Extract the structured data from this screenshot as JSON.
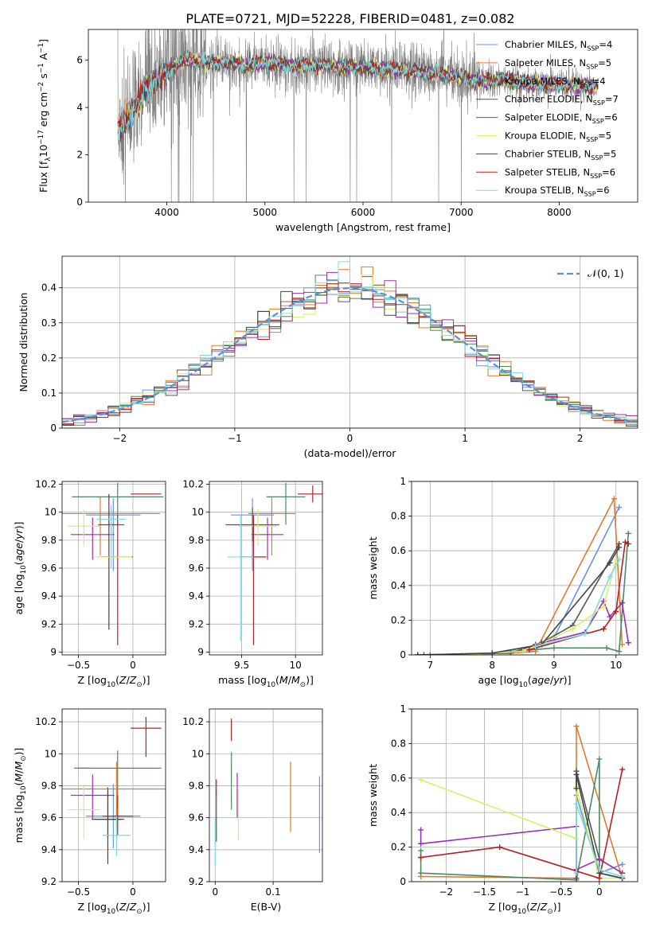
{
  "figure_title": "PLATE=0721, MJD=52228, FIBERID=0481, z=0.082",
  "colors": {
    "chabrier_miles": "#6495ed",
    "salpeter_miles": "#e07a2e",
    "kroupa_miles": "#4d8a63",
    "chabrier_elodie": "#555555",
    "salpeter_elodie": "#9b30b0",
    "kroupa_elodie": "#d8ef6a",
    "chabrier_stelib": "#444444",
    "salpeter_stelib": "#b22222",
    "kroupa_stelib": "#7fdbe0",
    "data": "#808080",
    "gaussian": "#5b8fd6"
  },
  "chart_data": [
    {
      "id": "spectrum",
      "type": "line",
      "xlabel": "wavelength [Angstrom, rest frame]",
      "ylabel": "Flux [f<sub>λ</sub>10<sup>−17</sup> erg cm<sup>−2</sup> s<sup>−1</sup> A<sup>−1</sup>]",
      "xlim": [
        3200,
        8800
      ],
      "ylim": [
        0,
        7.3
      ],
      "xticks": [
        4000,
        5000,
        6000,
        7000,
        8000
      ],
      "yticks": [
        0,
        2,
        4,
        6
      ],
      "legend": "top-right",
      "continuum": {
        "wavelength": [
          3500,
          3600,
          3700,
          3800,
          3900,
          4000,
          4100,
          4200,
          4400,
          4600,
          4800,
          5000,
          5200,
          5500,
          5800,
          6000,
          6200,
          6400,
          6600,
          6800,
          7000,
          7200,
          7400,
          7600,
          7800,
          8000,
          8200,
          8400,
          8600,
          8800
        ],
        "flux": [
          3.0,
          3.6,
          4.1,
          4.9,
          5.2,
          5.5,
          5.9,
          6.0,
          5.9,
          5.9,
          5.8,
          5.9,
          5.8,
          5.8,
          5.7,
          5.7,
          5.6,
          5.6,
          5.5,
          5.4,
          5.3,
          5.1,
          5.2,
          5.1,
          5.0,
          5.0,
          4.9,
          4.9,
          4.8,
          4.8
        ]
      },
      "series": [
        {
          "name": "Chabrier MILES",
          "nssp": "N<sub>SSP</sub>=4",
          "color_key": "chabrier_miles"
        },
        {
          "name": "Salpeter MILES",
          "nssp": "N<sub>SSP</sub>=5",
          "color_key": "salpeter_miles"
        },
        {
          "name": "Kroupa MILES",
          "nssp": "N<sub>SSP</sub>=4",
          "color_key": "kroupa_miles"
        },
        {
          "name": "Chabrier ELODIE",
          "nssp": "N<sub>SSP</sub>=7",
          "color_key": "chabrier_elodie"
        },
        {
          "name": "Salpeter ELODIE",
          "nssp": "N<sub>SSP</sub>=6",
          "color_key": "salpeter_elodie"
        },
        {
          "name": "Kroupa ELODIE",
          "nssp": "N<sub>SSP</sub>=5",
          "color_key": "kroupa_elodie"
        },
        {
          "name": "Chabrier STELIB",
          "nssp": "N<sub>SSP</sub>=5",
          "color_key": "chabrier_stelib"
        },
        {
          "name": "Salpeter STELIB",
          "nssp": "N<sub>SSP</sub>=6",
          "color_key": "salpeter_stelib"
        },
        {
          "name": "Kroupa STELIB",
          "nssp": "N<sub>SSP</sub>=6",
          "color_key": "kroupa_stelib"
        }
      ]
    },
    {
      "id": "residuals",
      "type": "line",
      "xlabel": "(data-model)/error",
      "ylabel": "Normed distribution",
      "xlim": [
        -2.5,
        2.5
      ],
      "ylim": [
        0,
        0.49
      ],
      "xticks": [
        -2,
        -1,
        0,
        1,
        2
      ],
      "yticks": [
        0.0,
        0.1,
        0.2,
        0.3,
        0.4
      ],
      "grid": true,
      "legend": "top-right",
      "gaussian_label": "𝒩(0, 1)",
      "bin_width": 0.1,
      "bin_start": -2.5
    },
    {
      "id": "age_vs_Z",
      "type": "scatter",
      "xlabel": "Z [log<sub>10</sub>(<i>Z</i>/<i>Z</i><sub>⊙</sub>)]",
      "ylabel": "age  [log<sub>10</sub>(<i>age</i>/<i>yr</i>)]",
      "xlim": [
        -0.65,
        0.3
      ],
      "ylim": [
        8.98,
        10.22
      ],
      "xticks": [
        -0.5,
        0.0
      ],
      "yticks": [
        9.0,
        9.2,
        9.4,
        9.6,
        9.8,
        10.0,
        10.2
      ],
      "grid": true,
      "points": [
        {
          "color_key": "chabrier_miles",
          "x": -0.18,
          "xerr": 0.25,
          "y": 9.98,
          "yerr_lo": 0.4,
          "yerr_hi": 0.12
        },
        {
          "color_key": "salpeter_miles",
          "x": -0.3,
          "xerr": 0.55,
          "y": 9.99,
          "yerr_lo": 0.3,
          "yerr_hi": 0.12
        },
        {
          "color_key": "kroupa_miles",
          "x": -0.14,
          "xerr": 0.42,
          "y": 10.11,
          "yerr_lo": 0.2,
          "yerr_hi": 0.1
        },
        {
          "color_key": "chabrier_elodie",
          "x": -0.2,
          "xerr": 0.12,
          "y": 9.91,
          "yerr_lo": 0.12,
          "yerr_hi": 0.12
        },
        {
          "color_key": "salpeter_elodie",
          "x": -0.37,
          "xerr": 0.2,
          "y": 9.84,
          "yerr_lo": 0.18,
          "yerr_hi": 0.12
        },
        {
          "color_key": "kroupa_elodie",
          "x": -0.45,
          "xerr": 0.15,
          "y": 9.9,
          "yerr_lo": 0.14,
          "yerr_hi": 0.12
        },
        {
          "color_key": "chabrier_stelib",
          "x": -0.22,
          "xerr": 0.09,
          "y": 9.68,
          "yerr_lo": 0.52,
          "yerr_hi": 0.45
        },
        {
          "color_key": "salpeter_stelib",
          "x": -0.14,
          "xerr": 0.14,
          "y": 9.68,
          "yerr_lo": 0.63,
          "yerr_hi": 0.3
        },
        {
          "color_key": "kroupa_elodie",
          "x": -0.18,
          "xerr": 0.17,
          "y": 9.68,
          "yerr_lo": 0.0,
          "yerr_hi": 0.0
        },
        {
          "color_key": "salpeter_stelib",
          "x": 0.12,
          "xerr": 0.14,
          "y": 10.13,
          "yerr_lo": 0.0,
          "yerr_hi": 0.0
        },
        {
          "color_key": "kroupa_stelib",
          "x": -0.2,
          "xerr": 0.13,
          "y": 9.95,
          "yerr_lo": 0.35,
          "yerr_hi": 0.1
        }
      ]
    },
    {
      "id": "age_vs_mass",
      "type": "scatter",
      "xlabel": "mass [log<sub>10</sub>(<i>M</i>/<i>M</i><sub>⊙</sub>)]",
      "ylabel": "",
      "xlim": [
        9.2,
        10.25
      ],
      "ylim": [
        8.98,
        10.22
      ],
      "xticks": [
        9.5,
        10.0
      ],
      "yticks": [
        9.0,
        9.2,
        9.4,
        9.6,
        9.8,
        10.0,
        10.2
      ],
      "grid": true,
      "points": [
        {
          "color_key": "chabrier_miles",
          "x": 9.6,
          "xerr": 0.2,
          "y": 9.98,
          "yerr_lo": 0.4,
          "yerr_hi": 0.12
        },
        {
          "color_key": "salpeter_miles",
          "x": 9.78,
          "xerr": 0.22,
          "y": 9.99,
          "yerr_lo": 0.3,
          "yerr_hi": 0.12
        },
        {
          "color_key": "kroupa_miles",
          "x": 9.91,
          "xerr": 0.18,
          "y": 10.11,
          "yerr_lo": 0.2,
          "yerr_hi": 0.1
        },
        {
          "color_key": "chabrier_elodie",
          "x": 9.6,
          "xerr": 0.25,
          "y": 9.91,
          "yerr_lo": 0.12,
          "yerr_hi": 0.12
        },
        {
          "color_key": "salpeter_elodie",
          "x": 9.74,
          "xerr": 0.15,
          "y": 9.84,
          "yerr_lo": 0.18,
          "yerr_hi": 0.12
        },
        {
          "color_key": "kroupa_elodie",
          "x": 9.65,
          "xerr": 0.18,
          "y": 9.9,
          "yerr_lo": 0.14,
          "yerr_hi": 0.12
        },
        {
          "color_key": "chabrier_stelib",
          "x": 9.6,
          "xerr": 0.12,
          "y": 9.68,
          "yerr_lo": 0.0,
          "yerr_hi": 0.0
        },
        {
          "color_key": "salpeter_stelib",
          "x": 9.61,
          "xerr": 0.12,
          "y": 9.68,
          "yerr_lo": 0.63,
          "yerr_hi": 0.3
        },
        {
          "color_key": "salpeter_stelib",
          "x": 10.16,
          "xerr": 0.14,
          "y": 10.13,
          "yerr_lo": 0.06,
          "yerr_hi": 0.06
        },
        {
          "color_key": "kroupa_stelib",
          "x": 9.49,
          "xerr": 0.12,
          "y": 9.68,
          "yerr_lo": 0.6,
          "yerr_hi": 0.3
        }
      ]
    },
    {
      "id": "mass_weight_vs_age",
      "type": "line",
      "xlabel": "age  [log<sub>10</sub>(<i>age</i>/<i>yr</i>)]",
      "ylabel": "mass weight",
      "xlim": [
        6.7,
        10.35
      ],
      "ylim": [
        0,
        1.0
      ],
      "xticks": [
        7,
        8,
        9,
        10
      ],
      "yticks": [
        0.0,
        0.2,
        0.4,
        0.6,
        0.8,
        1.0
      ],
      "grid": true,
      "series": [
        {
          "color_key": "chabrier_miles",
          "x": [
            6.8,
            8.0,
            8.7,
            9.0,
            10.05
          ],
          "y": [
            0.0,
            0.01,
            0.05,
            0.1,
            0.85
          ]
        },
        {
          "color_key": "salpeter_miles",
          "x": [
            6.8,
            8.3,
            8.7,
            9.97,
            10.1
          ],
          "y": [
            0.0,
            0.01,
            0.02,
            0.9,
            0.06
          ]
        },
        {
          "color_key": "kroupa_miles",
          "x": [
            7.0,
            8.0,
            9.0,
            9.85,
            10.05,
            10.2
          ],
          "y": [
            0.0,
            0.01,
            0.04,
            0.04,
            0.02,
            0.7
          ]
        },
        {
          "color_key": "chabrier_elodie",
          "x": [
            6.9,
            8.3,
            8.8,
            9.3,
            10.05
          ],
          "y": [
            0.0,
            0.01,
            0.07,
            0.17,
            0.64
          ]
        },
        {
          "color_key": "salpeter_elodie",
          "x": [
            8.7,
            9.5,
            9.8,
            9.9,
            10.1,
            10.2
          ],
          "y": [
            0.06,
            0.13,
            0.31,
            0.22,
            0.3,
            0.07
          ]
        },
        {
          "color_key": "kroupa_elodie",
          "x": [
            7.5,
            8.5,
            9.3,
            9.8,
            10.0
          ],
          "y": [
            0.0,
            0.02,
            0.15,
            0.28,
            0.55
          ]
        },
        {
          "color_key": "chabrier_stelib",
          "x": [
            6.8,
            8.0,
            8.8,
            9.9,
            10.05
          ],
          "y": [
            0.0,
            0.01,
            0.06,
            0.53,
            0.62
          ]
        },
        {
          "color_key": "salpeter_stelib",
          "x": [
            8.6,
            9.8,
            10.0,
            10.15,
            10.2
          ],
          "y": [
            0.03,
            0.15,
            0.25,
            0.65,
            0.64
          ]
        },
        {
          "color_key": "kroupa_stelib",
          "x": [
            8.7,
            9.5,
            9.9,
            10.05
          ],
          "y": [
            0.05,
            0.12,
            0.45,
            0.55
          ]
        }
      ]
    },
    {
      "id": "mass_vs_Z",
      "type": "scatter",
      "xlabel": "Z [log<sub>10</sub>(<i>Z</i>/<i>Z</i><sub>⊙</sub>)]",
      "ylabel": "mass [log<sub>10</sub>(<i>M</i>/<i>M</i><sub>⊙</sub>)]",
      "xlim": [
        -0.65,
        0.3
      ],
      "ylim": [
        9.2,
        10.28
      ],
      "xticks": [
        -0.5,
        0.0
      ],
      "yticks": [
        9.2,
        9.4,
        9.6,
        9.8,
        10.0,
        10.2
      ],
      "grid": true,
      "points": [
        {
          "color_key": "chabrier_miles",
          "x": -0.18,
          "xerr": 0.25,
          "y": 9.61,
          "yerr_lo": 0.2,
          "yerr_hi": 0.2
        },
        {
          "color_key": "salpeter_miles",
          "x": -0.15,
          "xerr": 0.5,
          "y": 9.78,
          "yerr_lo": 0.25,
          "yerr_hi": 0.17
        },
        {
          "color_key": "kroupa_miles",
          "x": -0.45,
          "xerr": 0.05,
          "y": 9.91,
          "yerr_lo": 0.0,
          "yerr_hi": 0.0
        },
        {
          "color_key": "kroupa_miles",
          "x": -0.14,
          "xerr": 0.4,
          "y": 9.91,
          "yerr_lo": 0.25,
          "yerr_hi": 0.11
        },
        {
          "color_key": "chabrier_elodie",
          "x": -0.23,
          "xerr": 0.15,
          "y": 9.59,
          "yerr_lo": 0.12,
          "yerr_hi": 0.2
        },
        {
          "color_key": "salpeter_elodie",
          "x": -0.37,
          "xerr": 0.2,
          "y": 9.74,
          "yerr_lo": 0.15,
          "yerr_hi": 0.13
        },
        {
          "color_key": "kroupa_elodie",
          "x": -0.45,
          "xerr": 0.15,
          "y": 9.65,
          "yerr_lo": 0.18,
          "yerr_hi": 0.15
        },
        {
          "color_key": "chabrier_stelib",
          "x": -0.23,
          "xerr": 0.12,
          "y": 9.59,
          "yerr_lo": 0.28,
          "yerr_hi": 0.18
        },
        {
          "color_key": "salpeter_stelib",
          "x": -0.14,
          "xerr": 0.14,
          "y": 9.61,
          "yerr_lo": 0.12,
          "yerr_hi": 0.13
        },
        {
          "color_key": "salpeter_stelib",
          "x": 0.12,
          "xerr": 0.14,
          "y": 10.16,
          "yerr_lo": 0.18,
          "yerr_hi": 0.07
        },
        {
          "color_key": "kroupa_stelib",
          "x": -0.15,
          "xerr": 0.13,
          "y": 9.49,
          "yerr_lo": 0.13,
          "yerr_hi": 0.12
        }
      ]
    },
    {
      "id": "mass_vs_ebv",
      "type": "scatter",
      "xlabel": "E(B-V)",
      "ylabel": "",
      "xlim": [
        -0.01,
        0.185
      ],
      "ylim": [
        9.2,
        10.28
      ],
      "xticks": [
        0.0,
        0.1
      ],
      "yticks": [
        9.2,
        9.4,
        9.6,
        9.8,
        10.0,
        10.2
      ],
      "grid": true,
      "points": [
        {
          "color_key": "chabrier_miles",
          "x": 0.18,
          "xerr": 0.0,
          "y": 9.62,
          "yerr_lo": 0.24,
          "yerr_hi": 0.24
        },
        {
          "color_key": "salpeter_miles",
          "x": 0.13,
          "xerr": 0.0,
          "y": 9.73,
          "yerr_lo": 0.22,
          "yerr_hi": 0.22
        },
        {
          "color_key": "kroupa_miles",
          "x": 0.028,
          "xerr": 0.0,
          "y": 9.83,
          "yerr_lo": 0.18,
          "yerr_hi": 0.18
        },
        {
          "color_key": "chabrier_elodie",
          "x": 0.002,
          "xerr": 0.0,
          "y": 9.6,
          "yerr_lo": 0.15,
          "yerr_hi": 0.15
        },
        {
          "color_key": "salpeter_elodie",
          "x": 0.038,
          "xerr": 0.0,
          "y": 9.74,
          "yerr_lo": 0.14,
          "yerr_hi": 0.14
        },
        {
          "color_key": "kroupa_elodie",
          "x": 0.04,
          "xerr": 0.0,
          "y": 9.62,
          "yerr_lo": 0.16,
          "yerr_hi": 0.16
        },
        {
          "color_key": "salpeter_stelib",
          "x": 0.002,
          "xerr": 0.0,
          "y": 9.79,
          "yerr_lo": 0.05,
          "yerr_hi": 0.05
        },
        {
          "color_key": "salpeter_stelib",
          "x": 0.028,
          "xerr": 0.0,
          "y": 10.15,
          "yerr_lo": 0.07,
          "yerr_hi": 0.07
        },
        {
          "color_key": "kroupa_stelib",
          "x": 0.0,
          "xerr": 0.0,
          "y": 9.45,
          "yerr_lo": 0.15,
          "yerr_hi": 0.15
        }
      ]
    },
    {
      "id": "mass_weight_vs_Z",
      "type": "line",
      "xlabel": "Z [log<sub>10</sub>(<i>Z</i>/<i>Z</i><sub>⊙</sub>)]",
      "ylabel": "mass weight",
      "xlim": [
        -2.45,
        0.5
      ],
      "ylim": [
        0,
        1.0
      ],
      "xticks": [
        -2.0,
        -1.5,
        -1.0,
        -0.5,
        0.0
      ],
      "yticks": [
        0.0,
        0.2,
        0.4,
        0.6,
        0.8,
        1.0
      ],
      "grid": true,
      "series": [
        {
          "color_key": "chabrier_miles",
          "x": [
            -0.3,
            -0.3,
            0.0,
            0.3
          ],
          "y": [
            0.05,
            0.5,
            0.05,
            0.1
          ]
        },
        {
          "color_key": "salpeter_miles",
          "x": [
            -2.33,
            -0.3,
            -0.3,
            0.3
          ],
          "y": [
            0.03,
            0.02,
            0.9,
            0.02
          ]
        },
        {
          "color_key": "kroupa_miles",
          "x": [
            -2.33,
            -2.33,
            -0.3,
            0.0,
            0.0,
            0.3
          ],
          "y": [
            0.18,
            0.05,
            0.01,
            0.71,
            0.05,
            0.02
          ]
        },
        {
          "color_key": "chabrier_elodie",
          "x": [
            -0.3,
            -0.3,
            0.0,
            0.3
          ],
          "y": [
            0.02,
            0.64,
            0.13,
            0.05
          ]
        },
        {
          "color_key": "salpeter_elodie",
          "x": [
            -2.33,
            -2.33,
            -0.3,
            -0.3,
            0.0,
            0.3
          ],
          "y": [
            0.3,
            0.22,
            0.32,
            0.07,
            0.13,
            0.05
          ]
        },
        {
          "color_key": "kroupa_elodie",
          "x": [
            -2.33,
            -0.3,
            -0.3,
            0.0,
            0.3
          ],
          "y": [
            0.59,
            0.25,
            0.55,
            0.02,
            0.02
          ]
        },
        {
          "color_key": "chabrier_stelib",
          "x": [
            -0.3,
            -0.3,
            0.0,
            0.3
          ],
          "y": [
            0.54,
            0.62,
            0.05,
            0.02
          ]
        },
        {
          "color_key": "salpeter_stelib",
          "x": [
            -2.33,
            -1.3,
            0.0,
            0.3
          ],
          "y": [
            0.14,
            0.2,
            0.02,
            0.65
          ]
        },
        {
          "color_key": "kroupa_stelib",
          "x": [
            -0.3,
            -0.3,
            0.0,
            0.3
          ],
          "y": [
            0.05,
            0.45,
            0.07,
            0.03
          ]
        }
      ]
    }
  ]
}
